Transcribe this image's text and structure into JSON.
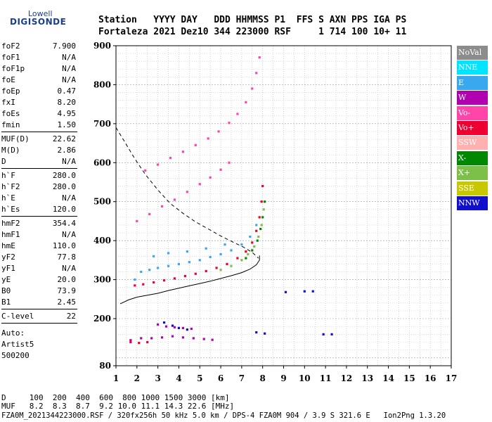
{
  "logo": {
    "top": "Lowell",
    "bottom": "DIGISONDE"
  },
  "header": {
    "row1": "Station   YYYY DAY   DDD HHMMSS P1  FFS S AXN PPS IGA PS",
    "row2": "Fortaleza 2021 Dez10 344 223000 RSF     1 714 100 10+ 11"
  },
  "params": [
    {
      "label": "foF2",
      "value": "7.900"
    },
    {
      "label": "foF1",
      "value": "N/A"
    },
    {
      "label": "foF1p",
      "value": "N/A"
    },
    {
      "label": "foE",
      "value": "N/A"
    },
    {
      "label": "foEp",
      "value": "0.47"
    },
    {
      "label": "fxI",
      "value": "8.20"
    },
    {
      "label": "foEs",
      "value": "4.95"
    },
    {
      "label": "fmin",
      "value": "1.50"
    },
    {
      "label": "MUF(D)",
      "value": "22.62"
    },
    {
      "label": "M(D)",
      "value": "2.86"
    },
    {
      "label": "D",
      "value": "N/A"
    },
    {
      "label": "h`F",
      "value": "280.0"
    },
    {
      "label": "h`F2",
      "value": "280.0"
    },
    {
      "label": "h`E",
      "value": "N/A"
    },
    {
      "label": "h`Es",
      "value": "120.0"
    },
    {
      "label": "hmF2",
      "value": "354.4"
    },
    {
      "label": "hmF1",
      "value": "N/A"
    },
    {
      "label": "hmE",
      "value": "110.0"
    },
    {
      "label": "yF2",
      "value": "77.8"
    },
    {
      "label": "yF1",
      "value": "N/A"
    },
    {
      "label": "yE",
      "value": "20.0"
    },
    {
      "label": "B0",
      "value": "73.9"
    },
    {
      "label": "B1",
      "value": "2.45"
    },
    {
      "label": "C-level",
      "value": "22"
    }
  ],
  "autoscaling": [
    "Auto:",
    "Artist5",
    "500200"
  ],
  "legend": [
    {
      "label": "NoVal",
      "color": "#8c8c8c"
    },
    {
      "label": "NNE",
      "color": "#00e5ff"
    },
    {
      "label": "E",
      "color": "#3aa8ee"
    },
    {
      "label": "W",
      "color": "#b000b0"
    },
    {
      "label": "Vo-",
      "color": "#ff44aa"
    },
    {
      "label": "Vo+",
      "color": "#ee0033"
    },
    {
      "label": "SSW",
      "color": "#ffb0b0"
    },
    {
      "label": "X-",
      "color": "#008800"
    },
    {
      "label": "X+",
      "color": "#7cc04a"
    },
    {
      "label": "SSE",
      "color": "#c8c800"
    },
    {
      "label": "NNW",
      "color": "#1010cc"
    }
  ],
  "footer": {
    "row1": "D     100  200  400  600  800 1000 1500 3000 [km]",
    "row2": "MUF   8.2  8.3  8.7  9.2 10.0 11.1 14.3 22.6 [MHz]",
    "row3": "FZA0M_2021344223000.RSF / 320fx256h 50 kHz 5.0 km / DPS-4 FZA0M 904 / 3.9 S 321.6 E   Ion2Png 1.3.20"
  },
  "chart_data": {
    "type": "scatter",
    "xlim": [
      1,
      17
    ],
    "ylim": [
      80,
      900
    ],
    "xticks": [
      1,
      2,
      3,
      4,
      5,
      6,
      7,
      8,
      9,
      10,
      11,
      12,
      13,
      14,
      15,
      16,
      17
    ],
    "yticks": [
      80,
      200,
      300,
      400,
      500,
      600,
      700,
      800,
      900
    ],
    "grid": true,
    "legend_position": "right",
    "series": [
      {
        "color": "#ee0033",
        "points": [
          [
            1.9,
            285
          ],
          [
            2.3,
            288
          ],
          [
            2.8,
            293
          ],
          [
            3.3,
            298
          ],
          [
            3.8,
            303
          ],
          [
            4.3,
            309
          ],
          [
            4.8,
            315
          ],
          [
            5.3,
            322
          ],
          [
            5.8,
            330
          ],
          [
            6.3,
            340
          ],
          [
            6.8,
            355
          ],
          [
            7.2,
            372
          ],
          [
            7.5,
            395
          ],
          [
            7.7,
            425
          ],
          [
            7.85,
            460
          ],
          [
            7.95,
            500
          ],
          [
            8.0,
            540
          ]
        ]
      },
      {
        "color": "#3aa8ee",
        "points": [
          [
            1.9,
            300
          ],
          [
            2.2,
            320
          ],
          [
            2.6,
            325
          ],
          [
            3.0,
            330
          ],
          [
            3.5,
            335
          ],
          [
            4.0,
            340
          ],
          [
            4.5,
            345
          ],
          [
            5.0,
            350
          ],
          [
            5.5,
            358
          ],
          [
            6.0,
            365
          ],
          [
            6.5,
            375
          ],
          [
            7.0,
            390
          ],
          [
            7.4,
            410
          ],
          [
            7.7,
            440
          ],
          [
            2.8,
            360
          ],
          [
            3.5,
            368
          ],
          [
            4.4,
            372
          ],
          [
            5.3,
            380
          ],
          [
            6.2,
            390
          ]
        ]
      },
      {
        "color": "#7cc04a",
        "points": [
          [
            6.0,
            325
          ],
          [
            6.5,
            335
          ],
          [
            7.0,
            350
          ],
          [
            7.3,
            365
          ],
          [
            7.6,
            385
          ],
          [
            7.8,
            410
          ],
          [
            7.95,
            440
          ],
          [
            8.05,
            480
          ]
        ]
      },
      {
        "color": "#008800",
        "points": [
          [
            7.2,
            355
          ],
          [
            7.5,
            375
          ],
          [
            7.75,
            400
          ],
          [
            7.9,
            430
          ],
          [
            8.0,
            460
          ],
          [
            8.1,
            500
          ]
        ]
      },
      {
        "color": "#ff44aa",
        "points": [
          [
            2.4,
            580
          ],
          [
            3.0,
            595
          ],
          [
            3.6,
            612
          ],
          [
            4.2,
            628
          ],
          [
            4.8,
            645
          ],
          [
            5.4,
            662
          ],
          [
            5.9,
            680
          ],
          [
            6.4,
            702
          ],
          [
            6.8,
            725
          ],
          [
            7.2,
            755
          ],
          [
            7.5,
            790
          ],
          [
            7.7,
            830
          ],
          [
            7.85,
            870
          ],
          [
            2.0,
            450
          ],
          [
            2.6,
            468
          ],
          [
            3.2,
            488
          ],
          [
            3.8,
            505
          ],
          [
            4.4,
            525
          ],
          [
            5.0,
            545
          ],
          [
            5.5,
            562
          ],
          [
            6.0,
            582
          ],
          [
            6.4,
            600
          ]
        ]
      },
      {
        "color": "#b000b0",
        "points": [
          [
            1.7,
            145
          ],
          [
            2.2,
            150
          ],
          [
            2.7,
            150
          ],
          [
            3.2,
            152
          ],
          [
            3.7,
            155
          ],
          [
            4.2,
            152
          ],
          [
            4.7,
            150
          ],
          [
            5.2,
            148
          ],
          [
            5.6,
            146
          ],
          [
            3.0,
            185
          ],
          [
            3.4,
            180
          ],
          [
            3.8,
            178
          ],
          [
            4.2,
            176
          ],
          [
            4.6,
            174
          ]
        ]
      },
      {
        "color": "#1010cc",
        "points": [
          [
            3.3,
            190
          ],
          [
            3.7,
            182
          ],
          [
            4.0,
            176
          ],
          [
            4.4,
            172
          ],
          [
            7.7,
            165
          ],
          [
            8.1,
            162
          ],
          [
            10.0,
            270
          ],
          [
            10.4,
            270
          ],
          [
            9.1,
            268
          ],
          [
            10.9,
            160
          ],
          [
            11.3,
            160
          ]
        ]
      },
      {
        "color": "#ee0033",
        "points": [
          [
            1.7,
            140
          ],
          [
            2.1,
            138
          ],
          [
            2.5,
            140
          ]
        ]
      }
    ],
    "curves": [
      {
        "name": "muf-virtual",
        "style": "dashed",
        "points": [
          [
            1.0,
            690
          ],
          [
            1.4,
            655
          ],
          [
            1.9,
            610
          ],
          [
            2.4,
            570
          ],
          [
            3.0,
            530
          ],
          [
            3.6,
            495
          ],
          [
            4.2,
            470
          ],
          [
            4.8,
            448
          ],
          [
            5.4,
            430
          ],
          [
            6.0,
            412
          ],
          [
            6.6,
            396
          ],
          [
            7.1,
            383
          ],
          [
            7.5,
            370
          ],
          [
            7.8,
            355
          ]
        ]
      },
      {
        "name": "profile",
        "style": "solid",
        "points": [
          [
            1.2,
            238
          ],
          [
            1.6,
            248
          ],
          [
            2.0,
            255
          ],
          [
            2.5,
            260
          ],
          [
            3.0,
            265
          ],
          [
            3.5,
            272
          ],
          [
            4.0,
            278
          ],
          [
            4.5,
            284
          ],
          [
            5.0,
            290
          ],
          [
            5.5,
            296
          ],
          [
            6.0,
            303
          ],
          [
            6.5,
            310
          ],
          [
            7.0,
            318
          ],
          [
            7.4,
            327
          ],
          [
            7.7,
            338
          ],
          [
            7.85,
            350
          ],
          [
            7.85,
            362
          ]
        ]
      }
    ]
  }
}
